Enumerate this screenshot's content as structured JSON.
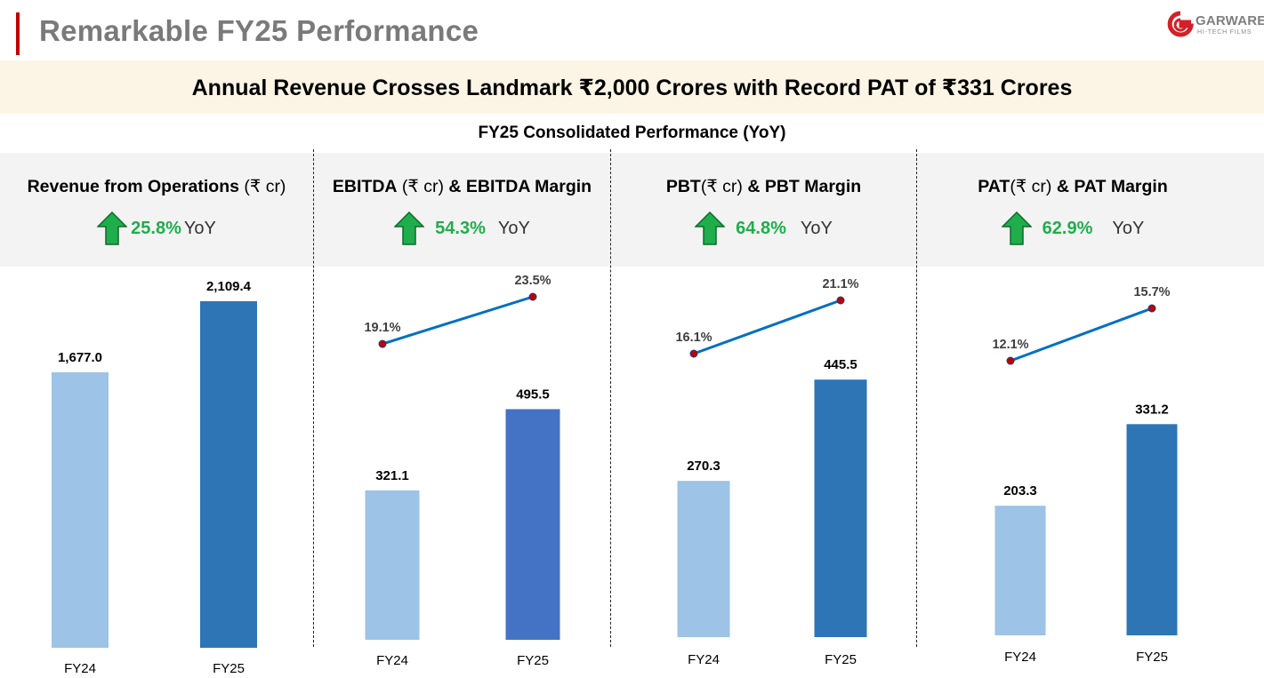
{
  "header": {
    "title": "Remarkable FY25 Performance",
    "logo_word": "GARWARE",
    "logo_sub": "HI-TECH FILMS"
  },
  "banner": {
    "text": "Annual Revenue Crosses Landmark ₹2,000 Crores with Record PAT of ₹331 Crores"
  },
  "subtitle": "FY25 Consolidated Performance (YoY)",
  "colors": {
    "fy24_bar": "#9dc3e6",
    "fy25_bar": "#2e75b6",
    "ebitda_fy25_bar": "#4472c4",
    "margin_line": "#0070c0",
    "margin_marker": "#c00000",
    "growth_green": "#1fae4b"
  },
  "chart_data": [
    {
      "type": "bar",
      "title_bold": "Revenue from Operations",
      "title_unit": " (₹ cr)",
      "title_tail": "",
      "growth": "25.8%",
      "growth_suffix": "YoY",
      "categories": [
        "FY24",
        "FY25"
      ],
      "values": [
        1677.0,
        2109.4
      ],
      "value_labels": [
        "1,677.0",
        "2,109.4"
      ]
    },
    {
      "type": "bar",
      "title_bold": "EBITDA",
      "title_unit": " (₹ cr) ",
      "title_tail": "& EBITDA Margin",
      "growth": "54.3%",
      "growth_suffix": "YoY",
      "categories": [
        "FY24",
        "FY25"
      ],
      "values": [
        321.1,
        495.5
      ],
      "value_labels": [
        "321.1",
        "495.5"
      ],
      "margin": [
        19.1,
        23.5
      ],
      "margin_labels": [
        "19.1%",
        "23.5%"
      ]
    },
    {
      "type": "bar",
      "title_bold": "PBT",
      "title_unit": "(₹ cr) ",
      "title_tail": "& PBT Margin",
      "growth": "64.8%",
      "growth_suffix": "YoY",
      "categories": [
        "FY24",
        "FY25"
      ],
      "values": [
        270.3,
        445.5
      ],
      "value_labels": [
        "270.3",
        "445.5"
      ],
      "margin": [
        16.1,
        21.1
      ],
      "margin_labels": [
        "16.1%",
        "21.1%"
      ]
    },
    {
      "type": "bar",
      "title_bold": "PAT",
      "title_unit": "(₹ cr) ",
      "title_tail": "& PAT Margin",
      "growth": "62.9%",
      "growth_suffix": "YoY",
      "categories": [
        "FY24",
        "FY25"
      ],
      "values": [
        203.3,
        331.2
      ],
      "value_labels": [
        "203.3",
        "331.2"
      ],
      "margin": [
        12.1,
        15.7
      ],
      "margin_labels": [
        "12.1%",
        "15.7%"
      ]
    }
  ]
}
